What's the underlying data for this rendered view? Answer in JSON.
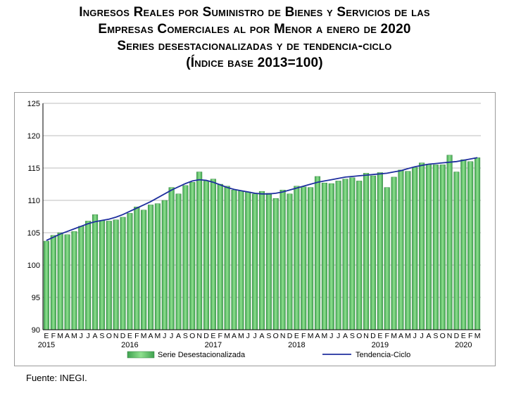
{
  "title": {
    "line1": "Ingresos Reales por Suministro de Bienes y Servicios de las",
    "line2": "Empresas Comerciales al por Menor a enero de 2020",
    "line3": "Series desestacionalizadas y de tendencia-ciclo",
    "line4": "(Índice base 2013=100)"
  },
  "source": "Fuente: INEGI.",
  "colors": {
    "bar_fill": "#5cbf6a",
    "bar_edge": "#2e7d3a",
    "line": "#1f2f9e",
    "grid": "#bdbdbd"
  },
  "chart_data": {
    "type": "bar",
    "title": "Ingresos Reales por Suministro de Bienes y Servicios de las Empresas Comerciales al por Menor a enero de 2020",
    "ylim": [
      90,
      125
    ],
    "yticks": [
      "90",
      "95",
      "100",
      "105",
      "110",
      "115",
      "120",
      "125"
    ],
    "month_labels": [
      "E",
      "F",
      "M",
      "A",
      "M",
      "J",
      "J",
      "A",
      "S",
      "O",
      "N",
      "D"
    ],
    "years": [
      "2015",
      "2016",
      "2017",
      "2018",
      "2019",
      "2020"
    ],
    "series": [
      {
        "name": "Serie Desestacionalizada",
        "type": "bar",
        "values": [
          103.7,
          104.6,
          105.0,
          104.7,
          105.2,
          106.0,
          106.8,
          107.8,
          106.9,
          106.8,
          107.0,
          107.4,
          108.0,
          109.0,
          108.5,
          109.3,
          109.5,
          110.0,
          112.0,
          111.0,
          112.3,
          112.8,
          114.4,
          113.0,
          113.3,
          112.5,
          112.2,
          111.6,
          111.5,
          111.3,
          111.0,
          111.4,
          111.1,
          110.3,
          111.6,
          111.0,
          112.2,
          112.1,
          112.0,
          113.7,
          112.7,
          112.6,
          113.0,
          113.3,
          113.5,
          113.0,
          114.2,
          113.8,
          114.3,
          112.0,
          113.6,
          114.7,
          114.5,
          115.1,
          115.8,
          115.6,
          115.5,
          115.5,
          117.0,
          114.4,
          116.3,
          116.0,
          116.6
        ]
      },
      {
        "name": "Tendencia-Ciclo",
        "type": "line",
        "values": [
          103.8,
          104.3,
          104.8,
          105.2,
          105.6,
          106.0,
          106.4,
          106.7,
          106.9,
          107.1,
          107.4,
          107.8,
          108.3,
          108.8,
          109.3,
          109.8,
          110.4,
          111.0,
          111.6,
          112.1,
          112.6,
          113.0,
          113.2,
          113.1,
          112.8,
          112.4,
          112.0,
          111.7,
          111.5,
          111.3,
          111.1,
          111.0,
          111.0,
          111.1,
          111.3,
          111.6,
          111.9,
          112.2,
          112.5,
          112.8,
          113.0,
          113.2,
          113.4,
          113.6,
          113.7,
          113.8,
          113.9,
          114.0,
          114.1,
          114.2,
          114.4,
          114.6,
          114.9,
          115.2,
          115.4,
          115.6,
          115.7,
          115.8,
          115.9,
          116.0,
          116.2,
          116.4,
          116.6
        ]
      }
    ]
  }
}
